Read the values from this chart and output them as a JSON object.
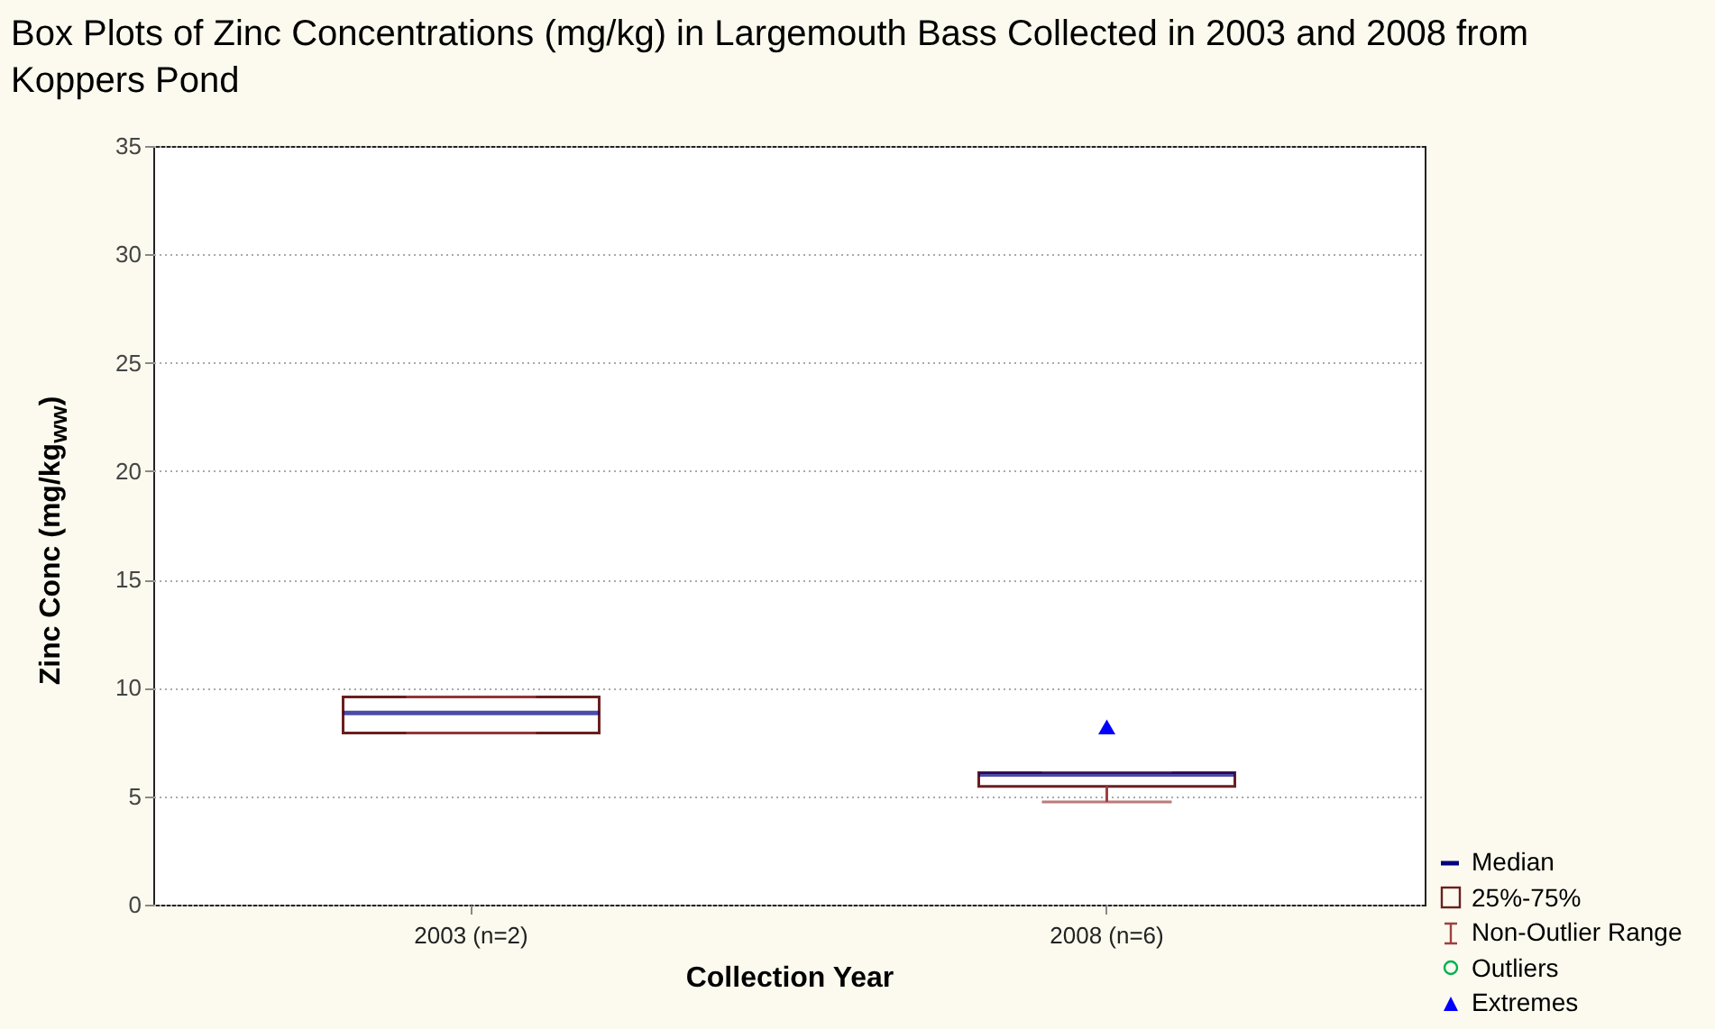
{
  "chart_data": {
    "type": "box",
    "title": "Box Plots of Zinc Concentrations (mg/kg) in Largemouth Bass Collected in 2003 and 2008 from Koppers Pond",
    "xlabel": "Collection Year",
    "ylabel": "Zinc Conc (mg/kg$_{ww}$)",
    "categories": [
      "2003 (n=2)",
      "2008 (n=6)"
    ],
    "series": [
      {
        "type": "box",
        "color": "#6b1f1f",
        "boxes": [
          {
            "low": 7.92,
            "q1": 7.92,
            "median": 8.84,
            "q3": 9.58,
            "high": 9.58
          },
          {
            "low": 4.74,
            "q1": 5.46,
            "median": 6.01,
            "q3": 6.09,
            "high": 6.09
          }
        ]
      },
      {
        "type": "scatter",
        "name": "Extremes",
        "color": "#0000ff",
        "marker": "triangle",
        "x": [
          "2008 (n=6)"
        ],
        "values": [
          8.2
        ]
      }
    ],
    "annotations": [
      "Median",
      "25%-75%",
      "Non-Outlier Range",
      "Outliers"
    ],
    "ylim": [
      0,
      35
    ],
    "yticks": [
      0,
      5,
      10,
      15,
      20,
      25,
      30,
      35
    ],
    "grid": "y",
    "legend": "bottom right"
  }
}
